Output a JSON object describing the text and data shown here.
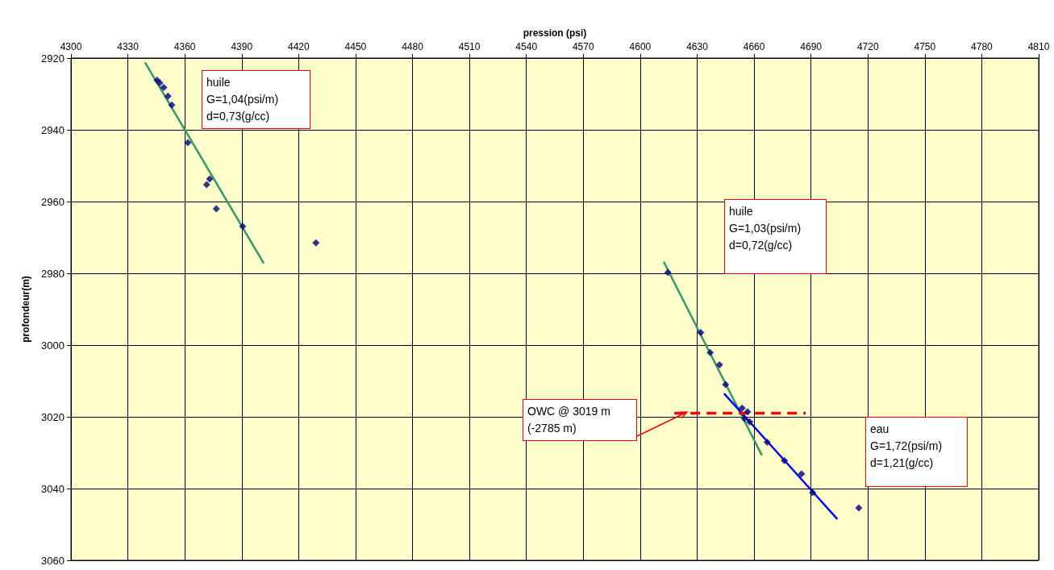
{
  "chart_data": {
    "type": "scatter",
    "xlabel": "pression (psi)",
    "ylabel": "profondeur(m)",
    "xlim": [
      4300,
      4810
    ],
    "xticks": [
      4300,
      4330,
      4360,
      4390,
      4420,
      4450,
      4480,
      4510,
      4540,
      4570,
      4600,
      4630,
      4660,
      4690,
      4720,
      4750,
      4780,
      4810
    ],
    "ylim": [
      3060,
      2920
    ],
    "yticks": [
      2920,
      2940,
      2960,
      2980,
      3000,
      3020,
      3040,
      3060
    ],
    "grid": true,
    "marker": "diamond",
    "series": [
      {
        "type": "scatter",
        "color": "#000080",
        "x": [
          4345.4,
          4346.8,
          4348.9,
          4351.1,
          4353.1,
          4361.6,
          4373.1,
          4371.5,
          4376.6,
          4390.5,
          4429.1,
          4614.6,
          4631.9,
          4636.9,
          4641.8,
          4645.0,
          4653.7,
          4656.6,
          4654.9,
          4657.7,
          4666.9,
          4676.0,
          4685.0,
          4690.9,
          4715.2
        ],
        "values": [
          2926.2,
          2926.9,
          2928.2,
          2930.6,
          2933.1,
          2943.6,
          2953.7,
          2955.3,
          2962.0,
          2966.9,
          2971.5,
          2979.8,
          2996.5,
          3002.1,
          3005.5,
          3011.0,
          3017.6,
          3018.6,
          3020.5,
          3021.4,
          3027.1,
          3032.2,
          3035.9,
          3041.1,
          3045.4
        ]
      },
      {
        "type": "line",
        "color": "#339966",
        "marker": "none",
        "x": [
          4339.0,
          4401.6
        ],
        "values": [
          2921.2,
          2977.2
        ]
      },
      {
        "type": "line",
        "color": "#339966",
        "marker": "none",
        "x": [
          4612.4,
          4664.1
        ],
        "values": [
          2976.8,
          3030.7
        ]
      },
      {
        "type": "line",
        "color": "#0000ff",
        "marker": "none",
        "x": [
          4644.2,
          4703.9
        ],
        "values": [
          3013.5,
          3048.5
        ]
      },
      {
        "type": "line",
        "color": "#ff0000",
        "marker": "none",
        "line_style": "dashed",
        "x": [
          4618.0,
          4687.2
        ],
        "values": [
          3019,
          3019
        ]
      }
    ],
    "annotations": [
      "huile\nG=1,04(psi/m)\nd=0,73(g/cc)",
      "huile\nG=1,03(psi/m)\nd=0,72(g/cc)",
      "OWC @ 3019 m\n(-2785 m)",
      "eau\nG=1,72(psi/m)\nd=1,21(g/cc)"
    ]
  }
}
